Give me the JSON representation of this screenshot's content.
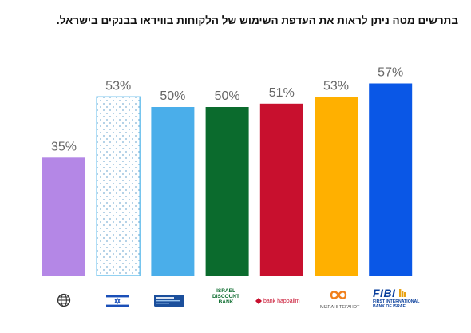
{
  "caption": "בתרשים מטה ניתן לראות את העדפת השימוש של הלקוחות בווידאו בבנקים בישראל.",
  "chart_data": {
    "type": "bar",
    "title": "",
    "xlabel": "",
    "ylabel": "",
    "ylim": [
      0,
      60
    ],
    "grid": false,
    "categories": [
      "globe-icon",
      "israel-flag",
      "bank-card-logo",
      "ISRAEL DISCOUNT BANK",
      "bank hapoalim",
      "MIZRAHI TEFAHOT",
      "FIBI FIRST INTERNATIONAL BANK OF ISRAEL"
    ],
    "values": [
      35,
      53,
      50,
      50,
      51,
      53,
      57
    ],
    "value_labels": [
      "35%",
      "53%",
      "50%",
      "50%",
      "51%",
      "53%",
      "57%"
    ],
    "colors": [
      "#b487e6",
      "#ffffff",
      "#4aaeea",
      "#0b6b2d",
      "#c8102e",
      "#ffb000",
      "#0a57e6"
    ],
    "patterns": [
      "solid",
      "dotted",
      "solid",
      "solid",
      "solid",
      "solid",
      "solid"
    ]
  },
  "logos": {
    "discount_line1": "ISRAEL",
    "discount_line2": "DISCOUNT",
    "discount_line3": "BANK",
    "hapoalim": "bank hapoalim",
    "mizrahi": "MIZRAHI TEFAHOT",
    "fibi": "FIBI",
    "fibi_sub1": "FIRST INTERNATIONAL",
    "fibi_sub2": "BANK OF ISRAEL"
  }
}
